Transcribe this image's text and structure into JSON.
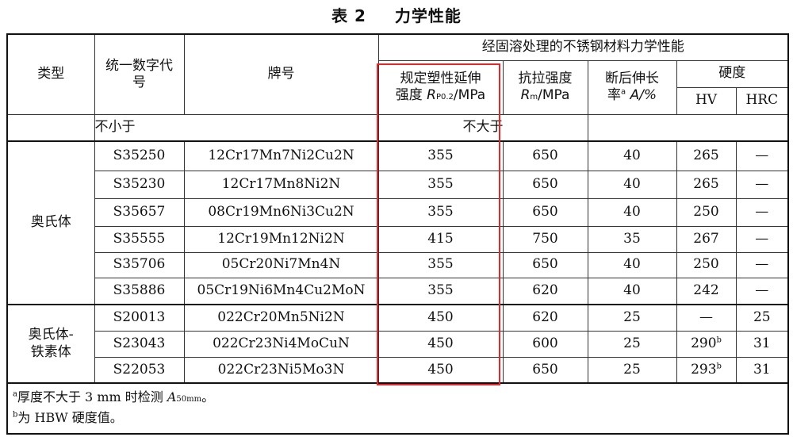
{
  "title": {
    "number": "表 2",
    "name": "力学性能"
  },
  "header": {
    "type": "类型",
    "code": "统一数字代号",
    "grade": "牌号",
    "group": "经固溶处理的不锈钢材料力学性能",
    "rp_line1": "规定塑性延伸",
    "rp_line2": "强度",
    "rp_symbol": "R",
    "rp_sub": "P0.2",
    "rp_unit": "/MPa",
    "rm_line1": "抗拉强度",
    "rm_symbol": "R",
    "rm_sub": "m",
    "rm_unit": "/MPa",
    "a_line1": "断后伸长",
    "a_line2": "率",
    "a_sup": "a",
    "a_unit": "A/%",
    "hardness": "硬度",
    "hv": "HV",
    "hrc": "HRC",
    "not_less": "不小于",
    "not_more": "不大于"
  },
  "groups": [
    {
      "type": "奥氏体",
      "rows": [
        {
          "code": "S35250",
          "grade": "12Cr17Mn7Ni2Cu2N",
          "rp": "355",
          "rm": "650",
          "a": "40",
          "hv": "265",
          "hv_sup": "",
          "hrc": "—"
        },
        {
          "code": "S35230",
          "grade": "12Cr17Mn8Ni2N",
          "rp": "355",
          "rm": "650",
          "a": "40",
          "hv": "265",
          "hv_sup": "",
          "hrc": "—"
        },
        {
          "code": "S35657",
          "grade": "08Cr19Mn6Ni3Cu2N",
          "rp": "355",
          "rm": "650",
          "a": "40",
          "hv": "250",
          "hv_sup": "",
          "hrc": "—"
        },
        {
          "code": "S35555",
          "grade": "12Cr19Mn12Ni2N",
          "rp": "415",
          "rm": "750",
          "a": "35",
          "hv": "267",
          "hv_sup": "",
          "hrc": "—"
        },
        {
          "code": "S35706",
          "grade": "05Cr20Ni7Mn4N",
          "rp": "355",
          "rm": "650",
          "a": "40",
          "hv": "250",
          "hv_sup": "",
          "hrc": "—"
        },
        {
          "code": "S35886",
          "grade": "05Cr19Ni6Mn4Cu2MoN",
          "rp": "355",
          "rm": "620",
          "a": "40",
          "hv": "242",
          "hv_sup": "",
          "hrc": "—"
        }
      ]
    },
    {
      "type": "奥氏体-铁素体",
      "rows": [
        {
          "code": "S20013",
          "grade": "022Cr20Mn5Ni2N",
          "rp": "450",
          "rm": "620",
          "a": "25",
          "hv": "—",
          "hv_sup": "",
          "hrc": "25"
        },
        {
          "code": "S23043",
          "grade": "022Cr23Ni4MoCuN",
          "rp": "450",
          "rm": "600",
          "a": "25",
          "hv": "290",
          "hv_sup": "b",
          "hrc": "31"
        },
        {
          "code": "S22053",
          "grade": "022Cr23Ni5Mo3N",
          "rp": "450",
          "rm": "650",
          "a": "25",
          "hv": "293",
          "hv_sup": "b",
          "hrc": "31"
        }
      ]
    }
  ],
  "footnotes": [
    {
      "mark": "a",
      "text": "厚度不大于 3 mm 时检测 ",
      "symbol": "A",
      "sub": "50mm",
      "end": "。"
    },
    {
      "mark": "b",
      "text": "为 HBW 硬度值。"
    }
  ],
  "highlight_color": "#e8262a"
}
